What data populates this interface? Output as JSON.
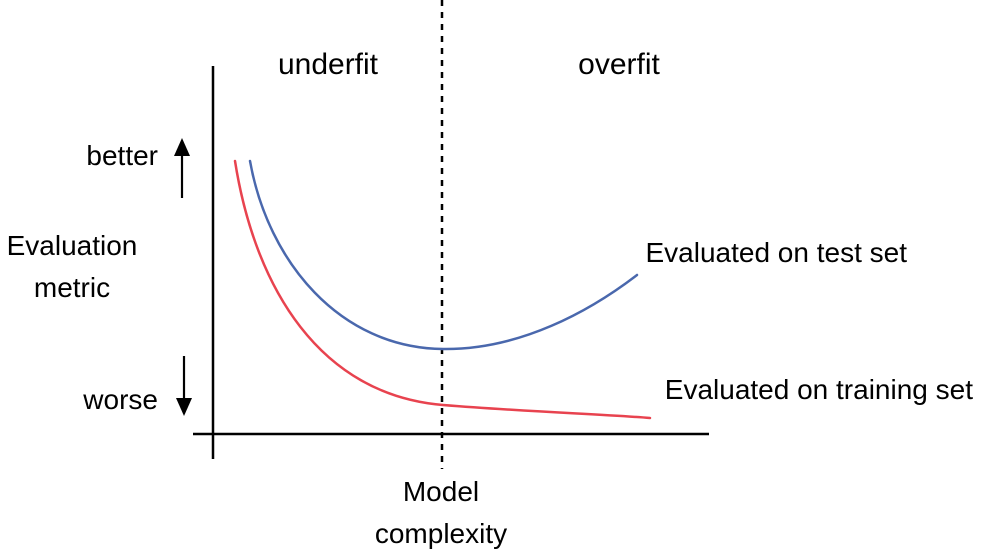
{
  "regions": {
    "left": "underfit",
    "right": "overfit"
  },
  "y_axis": {
    "label_line1": "Evaluation",
    "label_line2": "metric",
    "top_label": "better",
    "bottom_label": "worse"
  },
  "x_axis": {
    "label_line1": "Model",
    "label_line2": "complexity"
  },
  "curves": {
    "test": {
      "label": "Evaluated on test set",
      "color": "#4a68ad"
    },
    "training": {
      "label": "Evaluated on training set",
      "color": "#e8434f"
    }
  },
  "colors": {
    "axis": "#000000",
    "background": "#ffffff"
  }
}
